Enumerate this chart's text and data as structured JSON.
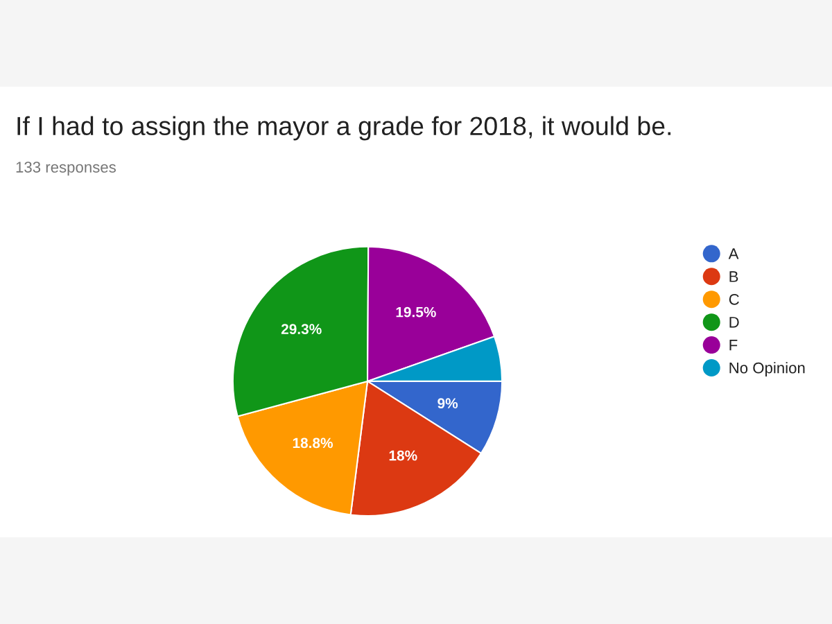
{
  "chart_data": {
    "type": "pie",
    "title": "If I had to assign the mayor a grade for 2018, it would be.",
    "subtitle": "133 responses",
    "categories": [
      "A",
      "B",
      "C",
      "D",
      "F",
      "No Opinion"
    ],
    "values": [
      9,
      18,
      18.8,
      29.3,
      19.5,
      5.4
    ],
    "value_labels": [
      "9%",
      "18%",
      "18.8%",
      "29.3%",
      "19.5%",
      null
    ],
    "colors": [
      "#3366cc",
      "#dc3912",
      "#ff9900",
      "#109618",
      "#990099",
      "#0099c6"
    ],
    "legend": "right"
  }
}
